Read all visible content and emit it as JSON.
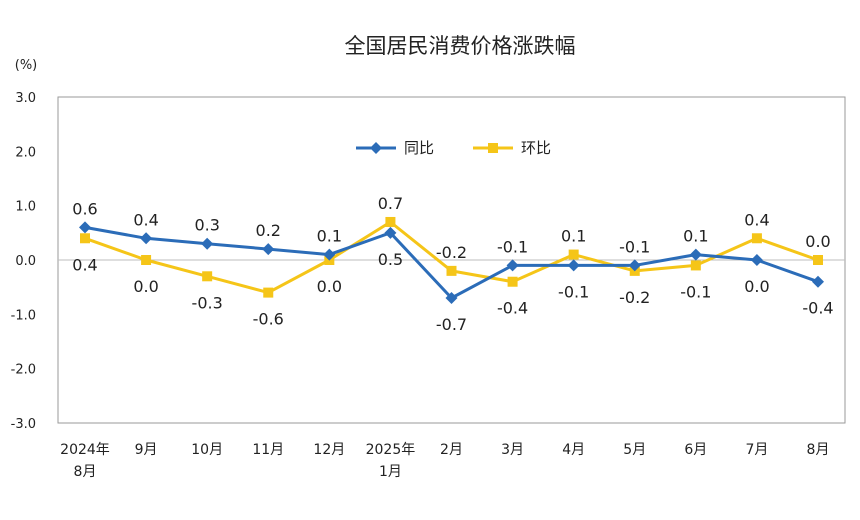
{
  "chart_data": {
    "type": "line",
    "title": "全国居民消费价格涨跌幅",
    "ylabel": "(%)",
    "xlabel": "",
    "ylim": [
      -3.0,
      3.0
    ],
    "yticks": [
      "3.0",
      "2.0",
      "1.0",
      "0.0",
      "-1.0",
      "-2.0",
      "-3.0"
    ],
    "categories": [
      [
        "2024年",
        "8月"
      ],
      [
        "9月"
      ],
      [
        "10月"
      ],
      [
        "11月"
      ],
      [
        "12月"
      ],
      [
        "2025年",
        "1月"
      ],
      [
        "2月"
      ],
      [
        "3月"
      ],
      [
        "4月"
      ],
      [
        "5月"
      ],
      [
        "6月"
      ],
      [
        "7月"
      ],
      [
        "8月"
      ]
    ],
    "legend_position": "top-center",
    "grid": false,
    "series": [
      {
        "name": "同比",
        "color": "#2b6cb8",
        "marker": "diamond",
        "values": [
          0.6,
          0.4,
          0.3,
          0.2,
          0.1,
          0.5,
          -0.7,
          -0.1,
          -0.1,
          -0.1,
          0.1,
          0.0,
          -0.4
        ],
        "labels": [
          "0.6",
          "0.4",
          "0.3",
          "0.2",
          "0.1",
          "0.5",
          "-0.7",
          "-0.1",
          "-0.1",
          "-0.1",
          "0.1",
          "0.0",
          "-0.4"
        ]
      },
      {
        "name": "环比",
        "color": "#f5c518",
        "marker": "square",
        "values": [
          0.4,
          0.0,
          -0.3,
          -0.6,
          0.0,
          0.7,
          -0.2,
          -0.4,
          0.1,
          -0.2,
          -0.1,
          0.4,
          0.0
        ],
        "labels": [
          "0.4",
          "0.0",
          "-0.3",
          "-0.6",
          "0.0",
          "0.7",
          "-0.2",
          "-0.4",
          "0.1",
          "-0.2",
          "-0.1",
          "0.4",
          "0.0"
        ]
      }
    ]
  }
}
